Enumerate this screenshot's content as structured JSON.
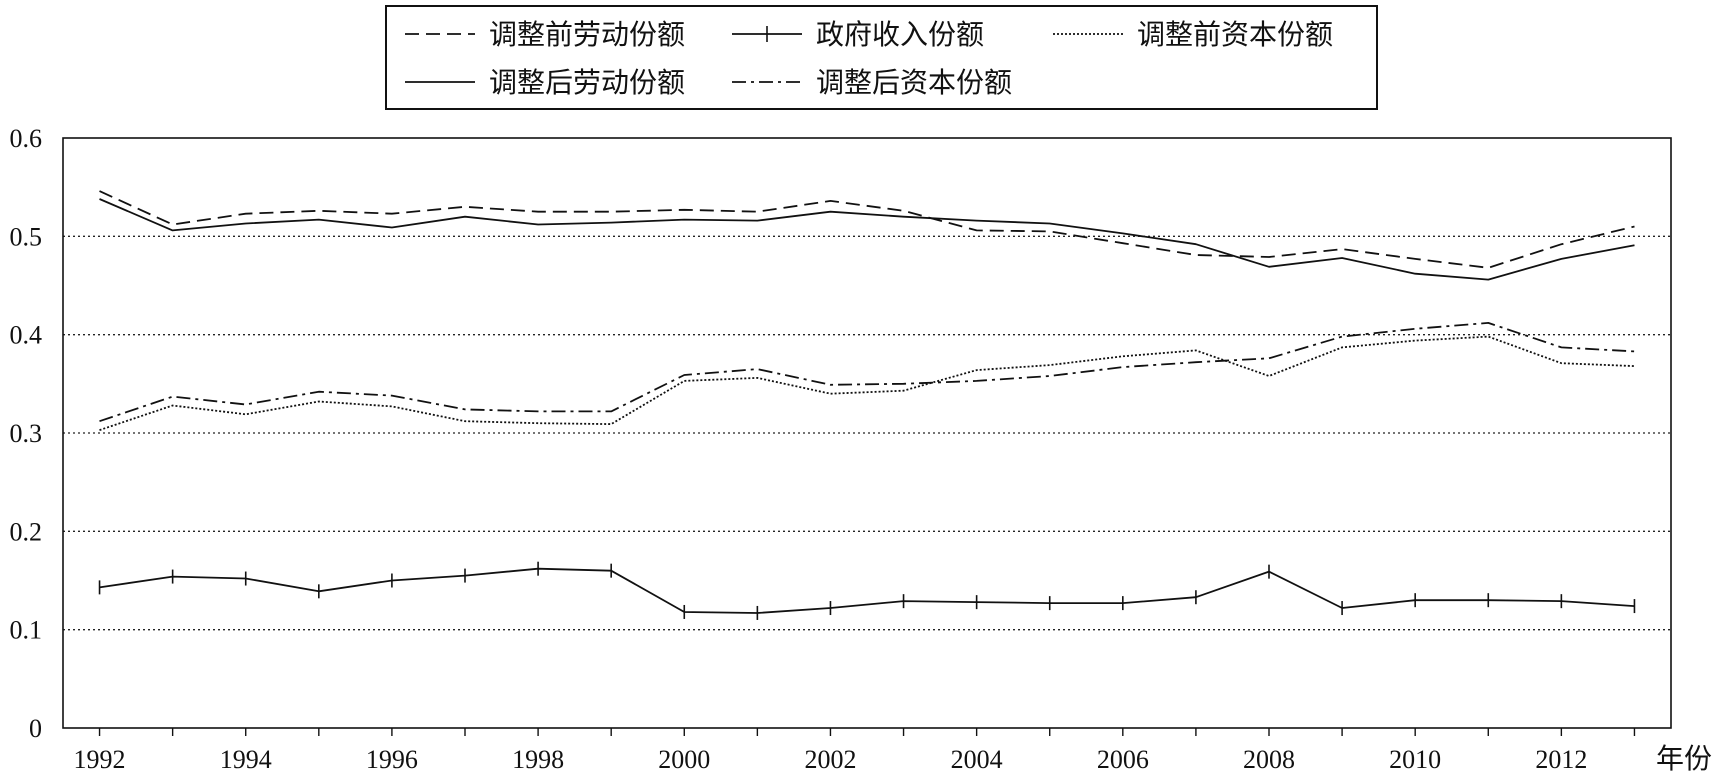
{
  "chart_data": {
    "type": "line",
    "xlabel": "年份",
    "ylabel": "",
    "title": "",
    "x": [
      1992,
      1993,
      1994,
      1995,
      1996,
      1997,
      1998,
      1999,
      2000,
      2001,
      2002,
      2003,
      2004,
      2005,
      2006,
      2007,
      2008,
      2009,
      2010,
      2011,
      2012,
      2013
    ],
    "xlim": [
      1991.5,
      2013.5
    ],
    "ylim": [
      0,
      0.6
    ],
    "x_ticks": [
      1992,
      1994,
      1996,
      1998,
      2000,
      2002,
      2004,
      2006,
      2008,
      2010,
      2012
    ],
    "x_tick_labels": [
      "1992",
      "1994",
      "1996",
      "1998",
      "2000",
      "2002",
      "2004",
      "2006",
      "2008",
      "2010",
      "2012"
    ],
    "y_ticks": [
      0,
      0.1,
      0.2,
      0.3,
      0.4,
      0.5,
      0.6
    ],
    "y_tick_labels": [
      "0",
      "0.1",
      "0.2",
      "0.3",
      "0.4",
      "0.5",
      "0.6"
    ],
    "grid": "horizontal dotted",
    "legend_position": "top-center",
    "series": [
      {
        "name": "调整前劳动份额",
        "style": "dashed",
        "values": [
          0.546,
          0.512,
          0.523,
          0.526,
          0.523,
          0.53,
          0.525,
          0.525,
          0.527,
          0.525,
          0.536,
          0.526,
          0.506,
          0.505,
          0.493,
          0.481,
          0.479,
          0.487,
          0.477,
          0.468,
          0.492,
          0.51
        ]
      },
      {
        "name": "政府收入份额",
        "style": "solid-cross",
        "values": [
          0.143,
          0.154,
          0.152,
          0.139,
          0.15,
          0.155,
          0.162,
          0.16,
          0.118,
          0.117,
          0.122,
          0.129,
          0.128,
          0.127,
          0.127,
          0.133,
          0.159,
          0.122,
          0.13,
          0.13,
          0.129,
          0.124
        ]
      },
      {
        "name": "调整前资本份额",
        "style": "dotted",
        "values": [
          0.303,
          0.328,
          0.319,
          0.332,
          0.327,
          0.312,
          0.31,
          0.309,
          0.353,
          0.356,
          0.34,
          0.343,
          0.364,
          0.369,
          0.378,
          0.384,
          0.358,
          0.387,
          0.394,
          0.398,
          0.371,
          0.368
        ]
      },
      {
        "name": "调整后劳动份额",
        "style": "solid",
        "values": [
          0.538,
          0.506,
          0.513,
          0.517,
          0.509,
          0.52,
          0.512,
          0.514,
          0.517,
          0.516,
          0.525,
          0.52,
          0.516,
          0.513,
          0.503,
          0.492,
          0.469,
          0.478,
          0.462,
          0.456,
          0.477,
          0.491
        ]
      },
      {
        "name": "调整后资本份额",
        "style": "dashdot",
        "values": [
          0.312,
          0.337,
          0.329,
          0.342,
          0.338,
          0.324,
          0.322,
          0.322,
          0.359,
          0.365,
          0.349,
          0.35,
          0.353,
          0.358,
          0.367,
          0.372,
          0.376,
          0.398,
          0.406,
          0.412,
          0.387,
          0.383
        ]
      }
    ]
  }
}
